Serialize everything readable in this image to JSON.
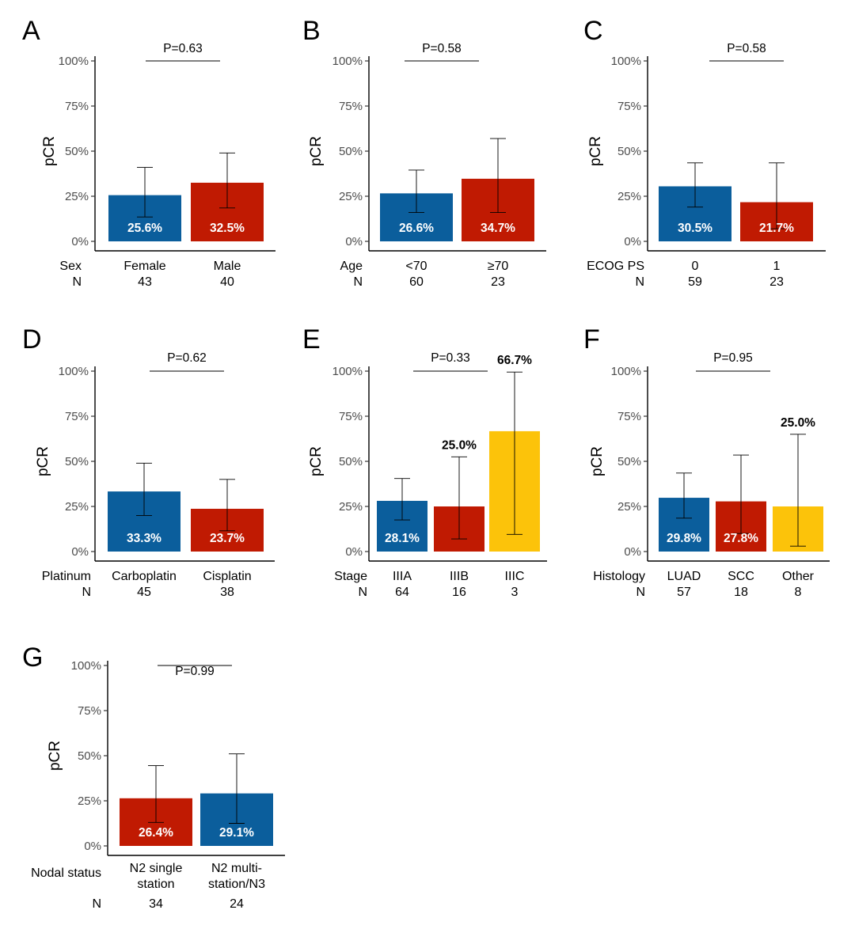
{
  "colors": {
    "blue": "#0b5e9c",
    "red": "#c01a02",
    "yellow": "#fcc30a"
  },
  "chart_data": [
    {
      "type": "bar",
      "panel": "A",
      "ylabel": "pCR",
      "ylim": [
        0,
        100
      ],
      "yticks": [
        "0%",
        "25%",
        "50%",
        "75%",
        "100%"
      ],
      "row_labels": [
        "Sex",
        "N"
      ],
      "categories": [
        "Female",
        "Male"
      ],
      "n": [
        "43",
        "40"
      ],
      "values": [
        25.6,
        32.5
      ],
      "value_labels": [
        "25.6%",
        "32.5%"
      ],
      "ci": [
        [
          13.5,
          41.0
        ],
        [
          18.5,
          49.0
        ]
      ],
      "colors": [
        "blue",
        "red"
      ],
      "label_inside": [
        true,
        true
      ],
      "pvalue": "P=0.63"
    },
    {
      "type": "bar",
      "panel": "B",
      "ylabel": "pCR",
      "ylim": [
        0,
        100
      ],
      "yticks": [
        "0%",
        "25%",
        "50%",
        "75%",
        "100%"
      ],
      "row_labels": [
        "Age",
        "N"
      ],
      "categories": [
        "<70",
        "≥70"
      ],
      "n": [
        "60",
        "23"
      ],
      "values": [
        26.6,
        34.7
      ],
      "value_labels": [
        "26.6%",
        "34.7%"
      ],
      "ci": [
        [
          16.0,
          39.5
        ],
        [
          16.0,
          57.0
        ]
      ],
      "colors": [
        "blue",
        "red"
      ],
      "label_inside": [
        true,
        true
      ],
      "pvalue": "P=0.58"
    },
    {
      "type": "bar",
      "panel": "C",
      "ylabel": "pCR",
      "ylim": [
        0,
        100
      ],
      "yticks": [
        "0%",
        "25%",
        "50%",
        "75%",
        "100%"
      ],
      "row_labels": [
        "ECOG PS",
        "N"
      ],
      "categories": [
        "0",
        "1"
      ],
      "n": [
        "59",
        "23"
      ],
      "values": [
        30.5,
        21.7
      ],
      "value_labels": [
        "30.5%",
        "21.7%"
      ],
      "ci": [
        [
          19.0,
          43.5
        ],
        [
          7.0,
          43.5
        ]
      ],
      "colors": [
        "blue",
        "red"
      ],
      "label_inside": [
        true,
        true
      ],
      "pvalue": "P=0.58"
    },
    {
      "type": "bar",
      "panel": "D",
      "ylabel": "pCR",
      "ylim": [
        0,
        100
      ],
      "yticks": [
        "0%",
        "25%",
        "50%",
        "75%",
        "100%"
      ],
      "row_labels": [
        "Platinum",
        "N"
      ],
      "categories": [
        "Carboplatin",
        "Cisplatin"
      ],
      "n": [
        "45",
        "38"
      ],
      "values": [
        33.3,
        23.7
      ],
      "value_labels": [
        "33.3%",
        "23.7%"
      ],
      "ci": [
        [
          20.0,
          49.0
        ],
        [
          11.5,
          40.0
        ]
      ],
      "colors": [
        "blue",
        "red"
      ],
      "label_inside": [
        true,
        true
      ],
      "pvalue": "P=0.62"
    },
    {
      "type": "bar",
      "panel": "E",
      "ylabel": "pCR",
      "ylim": [
        0,
        100
      ],
      "yticks": [
        "0%",
        "25%",
        "50%",
        "75%",
        "100%"
      ],
      "row_labels": [
        "Stage",
        "N"
      ],
      "categories": [
        "IIIA",
        "IIIB",
        "IIIC"
      ],
      "n": [
        "64",
        "16"
      ],
      "n_extra": "3",
      "values": [
        28.1,
        25.0,
        66.7
      ],
      "value_labels": [
        "28.1%",
        "25.0%",
        "66.7%"
      ],
      "ci": [
        [
          17.5,
          40.5
        ],
        [
          7.0,
          52.5
        ],
        [
          9.5,
          99.5
        ]
      ],
      "colors": [
        "blue",
        "red",
        "yellow"
      ],
      "label_inside": [
        true,
        false,
        false
      ],
      "pvalue": "P=0.33"
    },
    {
      "type": "bar",
      "panel": "F",
      "ylabel": "pCR",
      "ylim": [
        0,
        100
      ],
      "yticks": [
        "0%",
        "25%",
        "50%",
        "75%",
        "100%"
      ],
      "row_labels": [
        "Histology",
        "N"
      ],
      "categories": [
        "LUAD",
        "SCC",
        "Other"
      ],
      "n": [
        "57",
        "18",
        "8"
      ],
      "values": [
        29.8,
        27.8,
        25.0
      ],
      "value_labels": [
        "29.8%",
        "27.8%",
        "25.0%"
      ],
      "ci": [
        [
          18.5,
          43.5
        ],
        [
          10.0,
          53.5
        ],
        [
          3.0,
          65.0
        ]
      ],
      "colors": [
        "blue",
        "red",
        "yellow"
      ],
      "label_inside": [
        true,
        true,
        false
      ],
      "pvalue": "P=0.95"
    },
    {
      "type": "bar",
      "panel": "G",
      "ylabel": "pCR",
      "ylim": [
        0,
        100
      ],
      "yticks": [
        "0%",
        "25%",
        "50%",
        "75%",
        "100%"
      ],
      "row_labels": [
        "Nodal status",
        "N"
      ],
      "categories": [
        "N2 single station",
        "N2 multi-station/N3"
      ],
      "category_lines": [
        [
          "N2 single",
          "station"
        ],
        [
          "N2 multi-",
          "station/N3"
        ]
      ],
      "n": [
        "34",
        "24"
      ],
      "values": [
        26.4,
        29.1
      ],
      "value_labels": [
        "26.4%",
        "29.1%"
      ],
      "ci": [
        [
          13.0,
          44.5
        ],
        [
          12.5,
          51.0
        ]
      ],
      "colors": [
        "red",
        "blue"
      ],
      "label_inside": [
        true,
        true
      ],
      "pvalue": "P=0.99"
    }
  ]
}
